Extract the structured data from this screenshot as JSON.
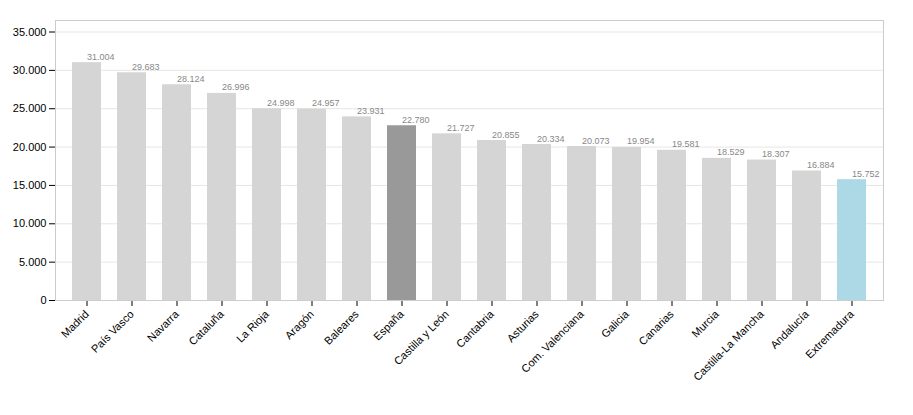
{
  "chart_data": {
    "type": "bar",
    "categories": [
      "Madrid",
      "País Vasco",
      "Navarra",
      "Cataluña",
      "La Rioja",
      "Aragón",
      "Baleares",
      "España",
      "Castilla y León",
      "Cantabria",
      "Asturias",
      "Com. Valenciana",
      "Galicia",
      "Canarias",
      "Murcia",
      "Castilla-La Mancha",
      "Andalucía",
      "Extremadura"
    ],
    "values": [
      31004,
      29683,
      28124,
      26996,
      24998,
      24957,
      23931,
      22780,
      21727,
      20855,
      20334,
      20073,
      19954,
      19581,
      18529,
      18307,
      16884,
      15752
    ],
    "value_labels": [
      "31.004",
      "29.683",
      "28.124",
      "26.996",
      "24.998",
      "24.957",
      "23.931",
      "22.780",
      "21.727",
      "20.855",
      "20.334",
      "20.073",
      "19.954",
      "19.581",
      "18.529",
      "18.307",
      "16.884",
      "15.752"
    ],
    "data_labels": true,
    "colors": [
      "#d5d5d5",
      "#d5d5d5",
      "#d5d5d5",
      "#d5d5d5",
      "#d5d5d5",
      "#d5d5d5",
      "#d5d5d5",
      "#999999",
      "#d5d5d5",
      "#d5d5d5",
      "#d5d5d5",
      "#d5d5d5",
      "#d5d5d5",
      "#d5d5d5",
      "#d5d5d5",
      "#d5d5d5",
      "#d5d5d5",
      "#add8e6"
    ],
    "ylim": [
      0,
      36500
    ],
    "yticks": [
      0,
      {
        "value": 5000,
        "label": "5.000"
      },
      {
        "value": 10000,
        "label": "10.000"
      },
      {
        "value": 15000,
        "label": "15.000"
      },
      {
        "value": 20000,
        "label": "20.000"
      },
      {
        "value": 25000,
        "label": "25.000"
      },
      {
        "value": 30000,
        "label": "30.000"
      },
      {
        "value": 35000,
        "label": "35.000"
      }
    ],
    "grid": true
  }
}
